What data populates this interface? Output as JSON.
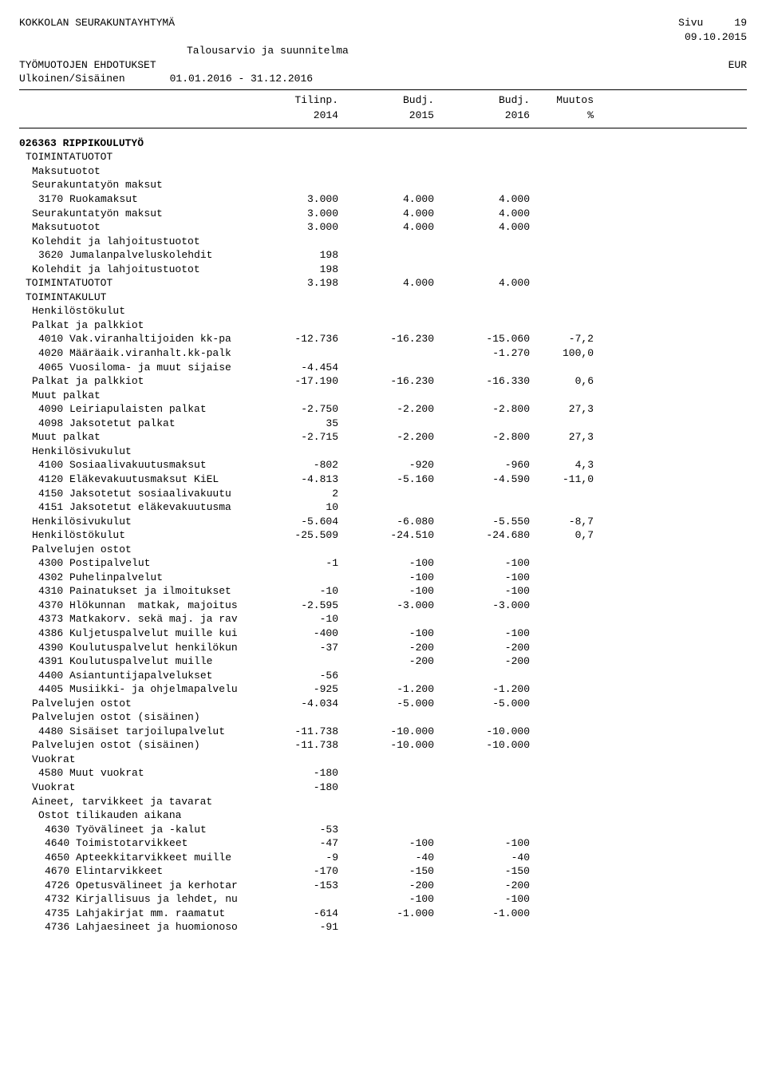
{
  "header": {
    "org": "KOKKOLAN SEURAKUNTAYHTYMÄ",
    "page_label": "Sivu",
    "page_num": "19",
    "date": "09.10.2015",
    "report_title": "Talousarvio ja suunnitelma",
    "section": "TYÖMUOTOJEN  EHDOTUKSET",
    "currency": "EUR",
    "scope": "Ulkoinen/Sisäinen",
    "period": "01.01.2016 - 31.12.2016"
  },
  "columns": {
    "h1a": "Tilinp.",
    "h1b": "2014",
    "h2a": "Budj.",
    "h2b": "2015",
    "h3a": "Budj.",
    "h3b": "2016",
    "h4a": "Muutos",
    "h4b": "%"
  },
  "rows": [
    {
      "indent": 0,
      "bold": true,
      "label": "026363 RIPPIKOULUTYÖ"
    },
    {
      "indent": 1,
      "label": "TOIMINTATUOTOT"
    },
    {
      "indent": 2,
      "label": "Maksutuotot"
    },
    {
      "indent": 2,
      "label": "Seurakuntatyön maksut"
    },
    {
      "indent": 3,
      "label": "3170 Ruokamaksut",
      "c1": "3.000",
      "c2": "4.000",
      "c3": "4.000"
    },
    {
      "indent": 2,
      "label": "Seurakuntatyön maksut",
      "c1": "3.000",
      "c2": "4.000",
      "c3": "4.000"
    },
    {
      "indent": 2,
      "label": "Maksutuotot",
      "c1": "3.000",
      "c2": "4.000",
      "c3": "4.000"
    },
    {
      "indent": 2,
      "label": "Kolehdit ja lahjoitustuotot"
    },
    {
      "indent": 3,
      "label": "3620 Jumalanpalveluskolehdit",
      "c1": "198"
    },
    {
      "indent": 2,
      "label": "Kolehdit ja lahjoitustuotot",
      "c1": "198"
    },
    {
      "indent": 1,
      "label": "TOIMINTATUOTOT",
      "c1": "3.198",
      "c2": "4.000",
      "c3": "4.000"
    },
    {
      "indent": 1,
      "label": "TOIMINTAKULUT"
    },
    {
      "indent": 2,
      "label": "Henkilöstökulut"
    },
    {
      "indent": 2,
      "label": "Palkat ja palkkiot"
    },
    {
      "indent": 3,
      "label": "4010 Vak.viranhaltijoiden kk-pa",
      "c1": "-12.736",
      "c2": "-16.230",
      "c3": "-15.060",
      "c4": "-7,2"
    },
    {
      "indent": 3,
      "label": "4020 Määräaik.viranhalt.kk-palk",
      "c3": "-1.270",
      "c4": "100,0"
    },
    {
      "indent": 3,
      "label": "4065 Vuosiloma- ja muut sijaise",
      "c1": "-4.454"
    },
    {
      "indent": 2,
      "label": "Palkat ja palkkiot",
      "c1": "-17.190",
      "c2": "-16.230",
      "c3": "-16.330",
      "c4": "0,6"
    },
    {
      "indent": 2,
      "label": "Muut palkat"
    },
    {
      "indent": 3,
      "label": "4090 Leiriapulaisten palkat",
      "c1": "-2.750",
      "c2": "-2.200",
      "c3": "-2.800",
      "c4": "27,3"
    },
    {
      "indent": 3,
      "label": "4098 Jaksotetut palkat",
      "c1": "35"
    },
    {
      "indent": 2,
      "label": "Muut palkat",
      "c1": "-2.715",
      "c2": "-2.200",
      "c3": "-2.800",
      "c4": "27,3"
    },
    {
      "indent": 2,
      "label": "Henkilösivukulut"
    },
    {
      "indent": 3,
      "label": "4100 Sosiaalivakuutusmaksut",
      "c1": "-802",
      "c2": "-920",
      "c3": "-960",
      "c4": "4,3"
    },
    {
      "indent": 3,
      "label": "4120 Eläkevakuutusmaksut KiEL",
      "c1": "-4.813",
      "c2": "-5.160",
      "c3": "-4.590",
      "c4": "-11,0"
    },
    {
      "indent": 3,
      "label": "4150 Jaksotetut sosiaalivakuutu",
      "c1": "2"
    },
    {
      "indent": 3,
      "label": "4151 Jaksotetut eläkevakuutusma",
      "c1": "10"
    },
    {
      "indent": 2,
      "label": "Henkilösivukulut",
      "c1": "-5.604",
      "c2": "-6.080",
      "c3": "-5.550",
      "c4": "-8,7"
    },
    {
      "indent": 2,
      "label": "Henkilöstökulut",
      "c1": "-25.509",
      "c2": "-24.510",
      "c3": "-24.680",
      "c4": "0,7"
    },
    {
      "indent": 2,
      "label": "Palvelujen ostot"
    },
    {
      "indent": 3,
      "label": "4300 Postipalvelut",
      "c1": "-1",
      "c2": "-100",
      "c3": "-100"
    },
    {
      "indent": 3,
      "label": "4302 Puhelinpalvelut",
      "c2": "-100",
      "c3": "-100"
    },
    {
      "indent": 3,
      "label": "4310 Painatukset ja ilmoitukset",
      "c1": "-10",
      "c2": "-100",
      "c3": "-100"
    },
    {
      "indent": 3,
      "label": "4370 Hlökunnan  matkak, majoitus",
      "c1": "-2.595",
      "c2": "-3.000",
      "c3": "-3.000"
    },
    {
      "indent": 3,
      "label": "4373 Matkakorv. sekä maj. ja rav",
      "c1": "-10"
    },
    {
      "indent": 3,
      "label": "4386 Kuljetuspalvelut muille kui",
      "c1": "-400",
      "c2": "-100",
      "c3": "-100"
    },
    {
      "indent": 3,
      "label": "4390 Koulutuspalvelut henkilökun",
      "c1": "-37",
      "c2": "-200",
      "c3": "-200"
    },
    {
      "indent": 3,
      "label": "4391 Koulutuspalvelut muille",
      "c2": "-200",
      "c3": "-200"
    },
    {
      "indent": 3,
      "label": "4400 Asiantuntijapalvelukset",
      "c1": "-56"
    },
    {
      "indent": 3,
      "label": "4405 Musiikki- ja ohjelmapalvelu",
      "c1": "-925",
      "c2": "-1.200",
      "c3": "-1.200"
    },
    {
      "indent": 2,
      "label": "Palvelujen ostot",
      "c1": "-4.034",
      "c2": "-5.000",
      "c3": "-5.000"
    },
    {
      "indent": 2,
      "label": "Palvelujen ostot (sisäinen)"
    },
    {
      "indent": 3,
      "label": "4480 Sisäiset tarjoilupalvelut",
      "c1": "-11.738",
      "c2": "-10.000",
      "c3": "-10.000"
    },
    {
      "indent": 2,
      "label": "Palvelujen ostot (sisäinen)",
      "c1": "-11.738",
      "c2": "-10.000",
      "c3": "-10.000"
    },
    {
      "indent": 2,
      "label": "Vuokrat"
    },
    {
      "indent": 3,
      "label": "4580 Muut vuokrat",
      "c1": "-180"
    },
    {
      "indent": 2,
      "label": "Vuokrat",
      "c1": "-180"
    },
    {
      "indent": 2,
      "label": "Aineet, tarvikkeet ja tavarat"
    },
    {
      "indent": 3,
      "label": "Ostot tilikauden aikana"
    },
    {
      "indent": 4,
      "label": "4630 Työvälineet ja -kalut",
      "c1": "-53"
    },
    {
      "indent": 4,
      "label": "4640 Toimistotarvikkeet",
      "c1": "-47",
      "c2": "-100",
      "c3": "-100"
    },
    {
      "indent": 4,
      "label": "4650 Apteekkitarvikkeet muille",
      "c1": "-9",
      "c2": "-40",
      "c3": "-40"
    },
    {
      "indent": 4,
      "label": "4670 Elintarvikkeet",
      "c1": "-170",
      "c2": "-150",
      "c3": "-150"
    },
    {
      "indent": 4,
      "label": "4726 Opetusvälineet ja kerhotar",
      "c1": "-153",
      "c2": "-200",
      "c3": "-200"
    },
    {
      "indent": 4,
      "label": "4732 Kirjallisuus ja lehdet, nu",
      "c2": "-100",
      "c3": "-100"
    },
    {
      "indent": 4,
      "label": "4735 Lahjakirjat mm. raamatut",
      "c1": "-614",
      "c2": "-1.000",
      "c3": "-1.000"
    },
    {
      "indent": 4,
      "label": "4736 Lahjaesineet ja huomionoso",
      "c1": "-91"
    }
  ]
}
